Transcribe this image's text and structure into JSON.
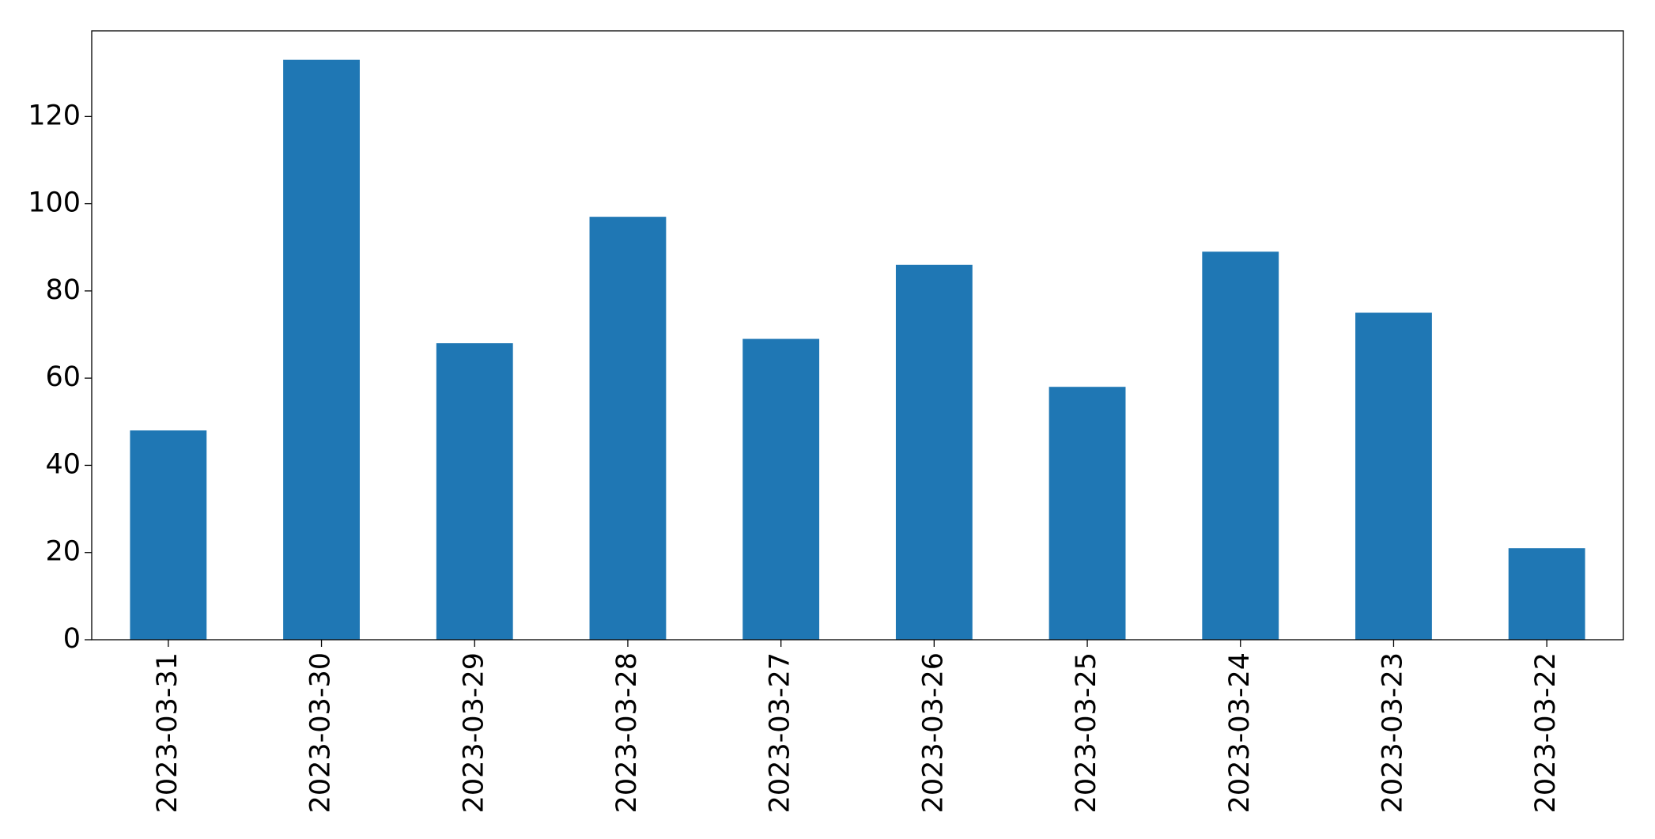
{
  "chart_data": {
    "type": "bar",
    "categories": [
      "2023-03-31",
      "2023-03-30",
      "2023-03-29",
      "2023-03-28",
      "2023-03-27",
      "2023-03-26",
      "2023-03-25",
      "2023-03-24",
      "2023-03-23",
      "2023-03-22"
    ],
    "values": [
      48,
      133,
      68,
      97,
      69,
      86,
      58,
      89,
      75,
      21
    ],
    "color": "#1f77b4",
    "ylim": [
      0,
      139.65
    ],
    "yticks": [
      0,
      20,
      40,
      60,
      80,
      100,
      120
    ],
    "grid": false
  }
}
